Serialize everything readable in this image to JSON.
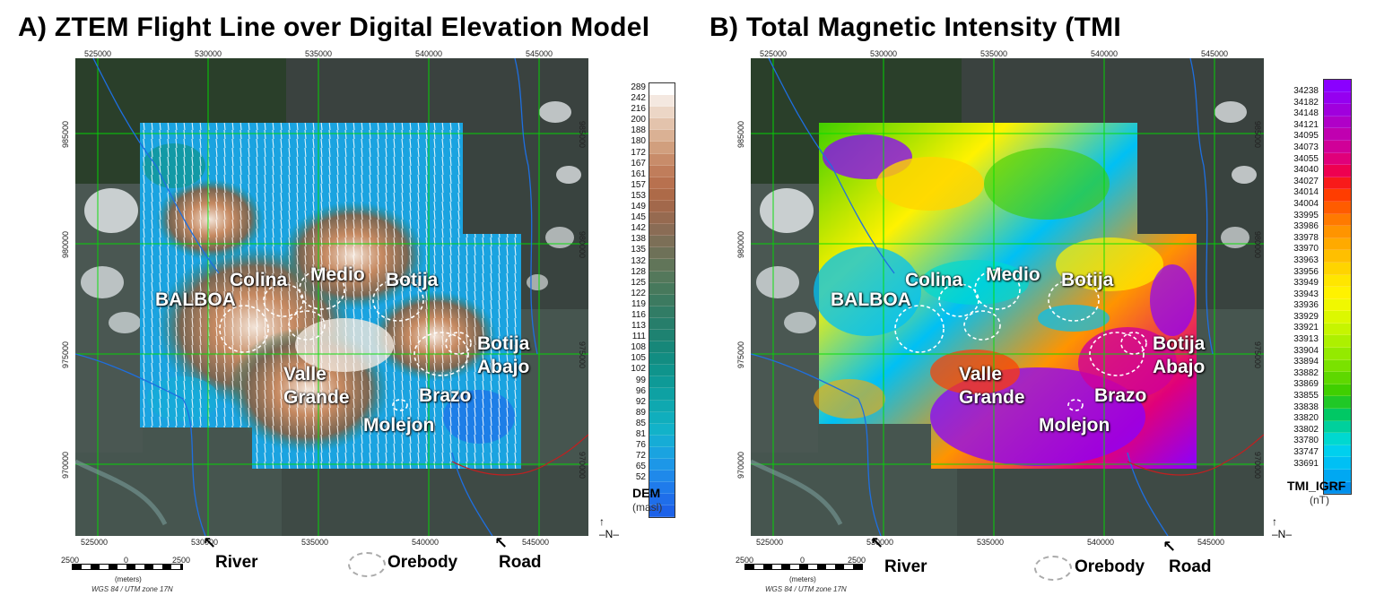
{
  "panelA": {
    "title": "A) ZTEM Flight Line over Digital Elevation Model",
    "x_ticks": [
      "525000",
      "530000",
      "535000",
      "540000",
      "545000"
    ],
    "y_ticks": [
      "985000",
      "980000",
      "975000",
      "970000"
    ],
    "labels": {
      "balboa": "BALBOA",
      "colina": "Colina",
      "medio": "Medio",
      "botija": "Botija",
      "botija_abajo_1": "Botija",
      "botija_abajo_2": "Abajo",
      "valle_1": "Valle",
      "valle_2": "Grande",
      "brazo": "Brazo",
      "molejon": "Molejon"
    },
    "legend": {
      "title": "DEM",
      "unit": "(masl)",
      "values": [
        "289",
        "242",
        "216",
        "200",
        "188",
        "180",
        "172",
        "167",
        "161",
        "157",
        "153",
        "149",
        "145",
        "142",
        "138",
        "135",
        "132",
        "128",
        "125",
        "122",
        "119",
        "116",
        "113",
        "111",
        "108",
        "105",
        "102",
        "99",
        "96",
        "92",
        "89",
        "85",
        "81",
        "76",
        "72",
        "65",
        "52"
      ],
      "colors": [
        "#ffffff",
        "#f4e8e0",
        "#ecd6c6",
        "#e3c3ac",
        "#dab194",
        "#d19f7e",
        "#c88c6a",
        "#c07d5b",
        "#b8714f",
        "#ad6a48",
        "#a2684b",
        "#966a50",
        "#8a6c55",
        "#7c6f57",
        "#6e7158",
        "#617559",
        "#54785b",
        "#47795c",
        "#3c7a60",
        "#317c65",
        "#277e6b",
        "#1e8271",
        "#178779",
        "#128d82",
        "#0f948c",
        "#0e9a97",
        "#0ea1a3",
        "#0fa8b0",
        "#10aebd",
        "#12b2c9",
        "#16acd6",
        "#1aa3e0",
        "#1d97e7",
        "#1f89ea",
        "#1f7beb",
        "#1f6eea",
        "#1d62e8"
      ]
    },
    "footer": {
      "river": "River",
      "orebody": "Orebody",
      "road": "Road",
      "scale_left": "2500",
      "scale_mid": "0",
      "scale_right": "2500",
      "scale_unit": "(meters)",
      "projection": "WGS 84 / UTM zone 17N"
    }
  },
  "panelB": {
    "title": "B) Total Magnetic Intensity (TMI",
    "x_ticks": [
      "525000",
      "530000",
      "535000",
      "540000",
      "545000"
    ],
    "y_ticks": [
      "985000",
      "980000",
      "975000",
      "970000"
    ],
    "labels": {
      "balboa": "BALBOA",
      "colina": "Colina",
      "medio": "Medio",
      "botija": "Botija",
      "botija_abajo_1": "Botija",
      "botija_abajo_2": "Abajo",
      "valle_1": "Valle",
      "valle_2": "Grande",
      "brazo": "Brazo",
      "molejon": "Molejon"
    },
    "legend": {
      "title": "TMI_IGRF",
      "unit": "(nT)",
      "values": [
        "34238",
        "34182",
        "34148",
        "34121",
        "34095",
        "34073",
        "34055",
        "34040",
        "34027",
        "34014",
        "34004",
        "33995",
        "33986",
        "33978",
        "33970",
        "33963",
        "33956",
        "33949",
        "33943",
        "33936",
        "33929",
        "33921",
        "33913",
        "33904",
        "33894",
        "33882",
        "33869",
        "33855",
        "33838",
        "33820",
        "33802",
        "33780",
        "33747",
        "33691"
      ],
      "colors": [
        "#8a00ff",
        "#9500f0",
        "#a000dd",
        "#b000c8",
        "#c000b0",
        "#d00098",
        "#e0007a",
        "#ee0050",
        "#f81a1a",
        "#ff3d00",
        "#ff5c00",
        "#ff7a00",
        "#ff9400",
        "#ffaa00",
        "#ffbf00",
        "#ffd400",
        "#ffe600",
        "#fff200",
        "#f0f800",
        "#dcf800",
        "#c6f500",
        "#adf000",
        "#94ea00",
        "#7ae200",
        "#5ed800",
        "#40cf00",
        "#20c826",
        "#00c864",
        "#00d09c",
        "#00d8d0",
        "#00d0ee",
        "#00c0f4",
        "#00a8f2",
        "#0090ec"
      ]
    },
    "footer": {
      "river": "River",
      "orebody": "Orebody",
      "road": "Road",
      "scale_left": "2500",
      "scale_mid": "0",
      "scale_right": "2500",
      "scale_unit": "(meters)",
      "projection": "WGS 84 / UTM zone 17N"
    }
  }
}
